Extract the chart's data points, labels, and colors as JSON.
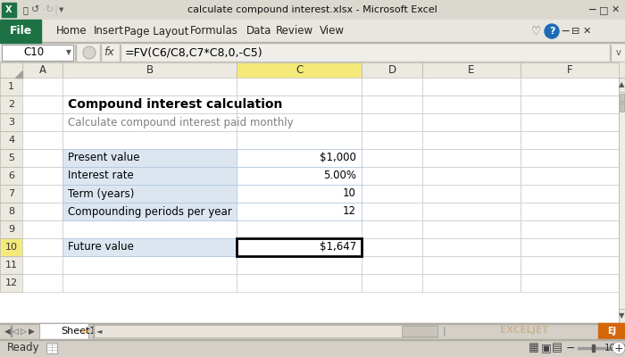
{
  "title_bar_text": "calculate compound interest.xlsx - Microsoft Excel",
  "cell_ref": "C10",
  "formula": "=FV(C6/C8,C7*C8,0,-C5)",
  "sheet_tab": "Sheet1",
  "heading": "Compound interest calculation",
  "subheading": "Calculate compound interest paid monthly",
  "table_rows": [
    {
      "label": "Present value",
      "value": "$1,000"
    },
    {
      "label": "Interest rate",
      "value": "5.00%"
    },
    {
      "label": "Term (years)",
      "value": "10"
    },
    {
      "label": "Compounding periods per year",
      "value": "12"
    }
  ],
  "result_label": "Future value",
  "result_value": "$1,647",
  "menu_items": [
    "File",
    "Home",
    "Insert",
    "Page Layout",
    "Formulas",
    "Data",
    "Review",
    "View"
  ],
  "col_labels": [
    "A",
    "B",
    "C",
    "D",
    "E",
    "F"
  ],
  "num_rows": 12,
  "bg_color": "#d4d0c8",
  "title_bar_color": "#e8e4dc",
  "ribbon_bg": "#eae8e0",
  "file_btn_color": "#1e7145",
  "cell_header_bg": "#f5e97a",
  "row_header_selected_bg": "#f5e97a",
  "table_row_bg": "#dce6f1",
  "table_border": "#adc4e0",
  "result_border": "#000000",
  "grid_color": "#c8c8c8",
  "subheading_color": "#808080",
  "scrollbar_bg": "#f0eeea",
  "scrollbar_thumb": "#c8c4bc",
  "status_bar_bg": "#d4d0c8"
}
